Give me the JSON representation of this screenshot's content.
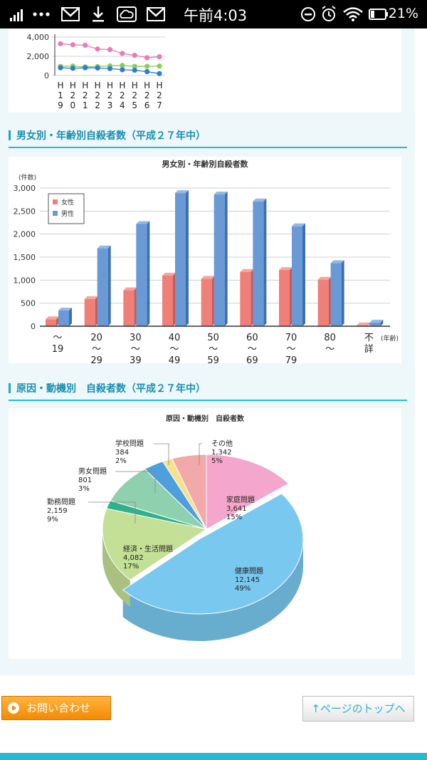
{
  "status_bar": {
    "time": "午前4:03",
    "battery": "21%",
    "icons": [
      "signal-icon",
      "more-dots-icon",
      "gmail-icon",
      "download-icon",
      "cloud-icon",
      "gmail-icon",
      "do-not-disturb-icon",
      "alarm-icon",
      "wifi-icon",
      "battery-icon"
    ]
  },
  "colors": {
    "accent": "#29b8d2",
    "heading": "#1a8fb0",
    "female": "#ef8079",
    "male": "#6a9ad6",
    "contact_button": "#f58a00"
  },
  "chart1": {
    "chart_data": {
      "type": "line",
      "x": [
        "H19",
        "H20",
        "H21",
        "H22",
        "H23",
        "H24",
        "H25",
        "H26",
        "H27"
      ],
      "x_labels_vertical": [
        [
          "H",
          "1",
          "9"
        ],
        [
          "H",
          "2",
          "0"
        ],
        [
          "H",
          "2",
          "1"
        ],
        [
          "H",
          "2",
          "2"
        ],
        [
          "H",
          "2",
          "3"
        ],
        [
          "H",
          "2",
          "4"
        ],
        [
          "H",
          "2",
          "5"
        ],
        [
          "H",
          "2",
          "6"
        ],
        [
          "H",
          "2",
          "7"
        ]
      ],
      "y_ticks": [
        "4,000",
        "2,000",
        "0"
      ],
      "ylim": [
        0,
        4500
      ],
      "series": [
        {
          "color": "#e87bb8",
          "values": [
            3300,
            3200,
            3150,
            2750,
            2700,
            2300,
            2100,
            1850,
            1950
          ]
        },
        {
          "color": "#8ccc5a",
          "values": [
            950,
            980,
            900,
            930,
            1000,
            1050,
            950,
            960,
            980
          ]
        },
        {
          "color": "#2a7fd4",
          "values": [
            800,
            750,
            800,
            780,
            720,
            600,
            550,
            400,
            200
          ]
        }
      ]
    }
  },
  "section2": {
    "heading": "男女別・年齢別自殺者数（平成２７年中）",
    "chart_data": {
      "type": "bar",
      "title": "男女別・年齢別自殺者数",
      "ylabel": "(件数)",
      "xlabel": "(年齢)",
      "y_ticks": [
        "3,000",
        "2,500",
        "2,000",
        "1,500",
        "1,000",
        "500",
        "0"
      ],
      "ylim": [
        0,
        3000
      ],
      "categories": [
        [
          "～",
          "19"
        ],
        [
          "20",
          "～",
          "29"
        ],
        [
          "30",
          "～",
          "39"
        ],
        [
          "40",
          "～",
          "49"
        ],
        [
          "50",
          "～",
          "59"
        ],
        [
          "60",
          "～",
          "69"
        ],
        [
          "70",
          "～",
          "79"
        ],
        [
          "80",
          "～"
        ],
        [
          "不",
          "詳"
        ]
      ],
      "series": [
        {
          "name": "女性",
          "values": [
            150,
            590,
            780,
            1100,
            1030,
            1180,
            1220,
            1010,
            20
          ]
        },
        {
          "name": "男性",
          "values": [
            340,
            1690,
            2220,
            2890,
            2860,
            2710,
            2170,
            1370,
            80
          ]
        }
      ],
      "legend": "top-left"
    }
  },
  "section3": {
    "heading": "原因・動機別　自殺者数（平成２７年中）",
    "chart_data": {
      "type": "pie",
      "title": "原因・動機別　自殺者数",
      "slices": [
        {
          "label": "家庭問題",
          "value": "3,641",
          "pct": "15%",
          "n": 3641,
          "color": "#f4a6cc"
        },
        {
          "label": "健康問題",
          "value": "12,145",
          "pct": "49%",
          "n": 12145,
          "color": "#79c8f0"
        },
        {
          "label": "経済・生活問題",
          "value": "4,082",
          "pct": "17%",
          "n": 4082,
          "color": "#c4df96"
        },
        {
          "label": "",
          "value": "",
          "pct": "",
          "n": 450,
          "color": "#2fb28a"
        },
        {
          "label": "勤務問題",
          "value": "2,159",
          "pct": "9%",
          "n": 2159,
          "color": "#8fd0ae"
        },
        {
          "label": "男女問題",
          "value": "801",
          "pct": "3%",
          "n": 801,
          "color": "#4f9fdc"
        },
        {
          "label": "学校問題",
          "value": "384",
          "pct": "2%",
          "n": 384,
          "color": "#f5e28a"
        },
        {
          "label": "その他",
          "value": "1,342",
          "pct": "5%",
          "n": 1342,
          "color": "#f2a9a9"
        }
      ]
    }
  },
  "buttons": {
    "contact": "お問い合わせ",
    "page_top": "↑ページのトップへ"
  }
}
